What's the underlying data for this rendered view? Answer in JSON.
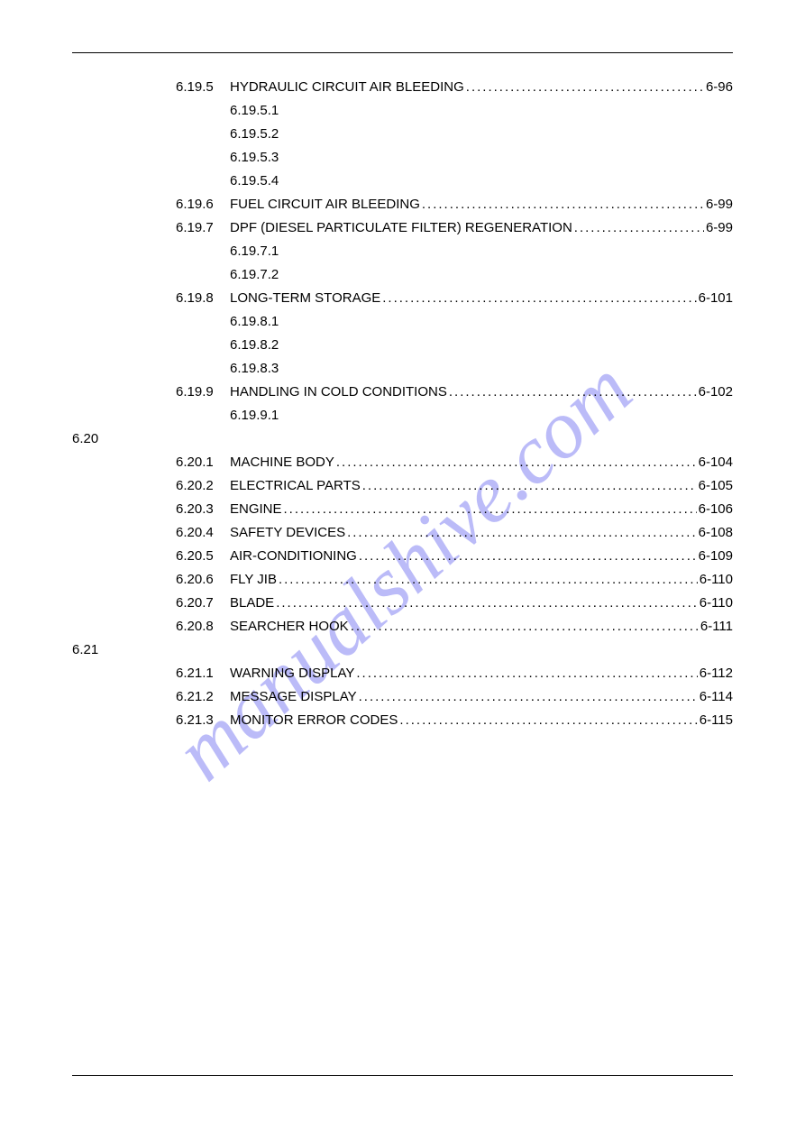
{
  "dots_fill": "..................................................................................................................................................",
  "watermark": {
    "text": "manualshive.com"
  },
  "toc": {
    "entries": [
      {
        "type": "l2",
        "num": "6.19.5",
        "title": "HYDRAULIC CIRCUIT AIR BLEEDING",
        "page": "6-96"
      },
      {
        "type": "l3",
        "num": "6.19.5.1"
      },
      {
        "type": "l3",
        "num": "6.19.5.2"
      },
      {
        "type": "l3",
        "num": "6.19.5.3"
      },
      {
        "type": "l3",
        "num": "6.19.5.4"
      },
      {
        "type": "l2",
        "num": "6.19.6",
        "title": "FUEL CIRCUIT AIR BLEEDING",
        "page": "6-99"
      },
      {
        "type": "l2",
        "num": "6.19.7",
        "title": "DPF (DIESEL PARTICULATE FILTER) REGENERATION",
        "page": "6-99"
      },
      {
        "type": "l3",
        "num": "6.19.7.1"
      },
      {
        "type": "l3",
        "num": "6.19.7.2"
      },
      {
        "type": "l2",
        "num": "6.19.8",
        "title": "LONG-TERM STORAGE",
        "page": "6-101"
      },
      {
        "type": "l3",
        "num": "6.19.8.1"
      },
      {
        "type": "l3",
        "num": "6.19.8.2"
      },
      {
        "type": "l3",
        "num": "6.19.8.3"
      },
      {
        "type": "l2",
        "num": "6.19.9",
        "title": "HANDLING IN COLD CONDITIONS",
        "page": "6-102"
      },
      {
        "type": "l3",
        "num": "6.19.9.1"
      },
      {
        "type": "l1",
        "num": "6.20"
      },
      {
        "type": "l2",
        "num": "6.20.1",
        "title": "MACHINE BODY",
        "page": "6-104"
      },
      {
        "type": "l2",
        "num": "6.20.2",
        "title": "ELECTRICAL PARTS",
        "page": "6-105"
      },
      {
        "type": "l2",
        "num": "6.20.3",
        "title": "ENGINE",
        "page": "6-106"
      },
      {
        "type": "l2",
        "num": "6.20.4",
        "title": "SAFETY DEVICES",
        "page": "6-108"
      },
      {
        "type": "l2",
        "num": "6.20.5",
        "title": "AIR-CONDITIONING",
        "page": "6-109"
      },
      {
        "type": "l2",
        "num": "6.20.6",
        "title": "FLY JIB",
        "page": "6-110"
      },
      {
        "type": "l2",
        "num": "6.20.7",
        "title": "BLADE",
        "page": "6-110"
      },
      {
        "type": "l2",
        "num": "6.20.8",
        "title": "SEARCHER HOOK",
        "page": "6-111"
      },
      {
        "type": "l1",
        "num": "6.21"
      },
      {
        "type": "l2",
        "num": "6.21.1",
        "title": "WARNING DISPLAY",
        "page": "6-112"
      },
      {
        "type": "l2",
        "num": "6.21.2",
        "title": "MESSAGE DISPLAY",
        "page": "6-114"
      },
      {
        "type": "l2",
        "num": "6.21.3",
        "title": "MONITOR ERROR CODES",
        "page": "6-115"
      }
    ]
  }
}
